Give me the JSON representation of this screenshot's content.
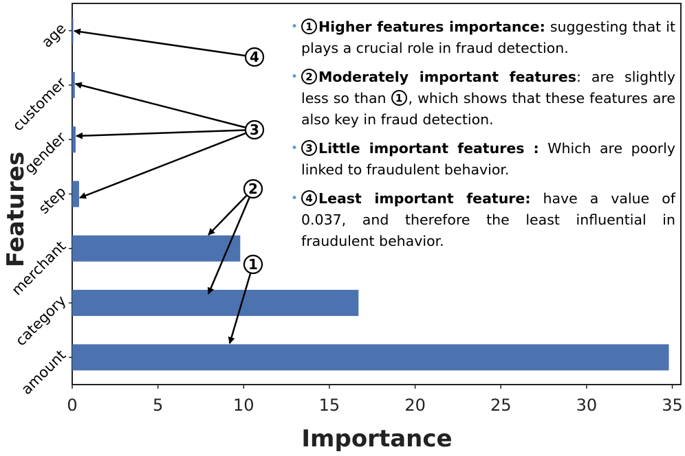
{
  "chart_data": {
    "type": "bar",
    "orientation": "horizontal",
    "categories": [
      "amount",
      "category",
      "merchant",
      "step",
      "gender",
      "customer",
      "age"
    ],
    "values": [
      34.8,
      16.7,
      9.8,
      0.4,
      0.2,
      0.15,
      0.037
    ],
    "bar_color": "#4c72b0",
    "xlabel": "Importance",
    "ylabel": "Features",
    "xlim": [
      0,
      35.5
    ],
    "xticks": [
      "0",
      "5",
      "10",
      "15",
      "20",
      "25",
      "30",
      "35"
    ],
    "xtick_values": [
      0,
      5,
      10,
      15,
      20,
      25,
      30,
      35
    ],
    "grid": false,
    "annotations": [
      {
        "label": "1",
        "targets": [
          "amount"
        ]
      },
      {
        "label": "2",
        "targets": [
          "category",
          "merchant"
        ]
      },
      {
        "label": "3",
        "targets": [
          "step",
          "gender",
          "customer"
        ]
      },
      {
        "label": "4",
        "targets": [
          "age"
        ]
      }
    ]
  },
  "notes": [
    {
      "num": "1",
      "heading": "Higher features importance:",
      "text": " suggesting that it plays a crucial role in fraud detection."
    },
    {
      "num": "2",
      "heading": "Moderately important features",
      "text_before": ": are slightly less so than ",
      "ref": "1",
      "text_after": ", which shows that these features are also key in fraud detection."
    },
    {
      "num": "3",
      "heading": "Little important features :",
      "text": " Which are poorly linked to fraudulent behavior."
    },
    {
      "num": "4",
      "heading": "Least important feature:",
      "text": " have a value of 0.037, and therefore the least influential in fraudulent behavior."
    }
  ],
  "bullet_symbol": "•",
  "bullet_color": "#5b9bd5"
}
